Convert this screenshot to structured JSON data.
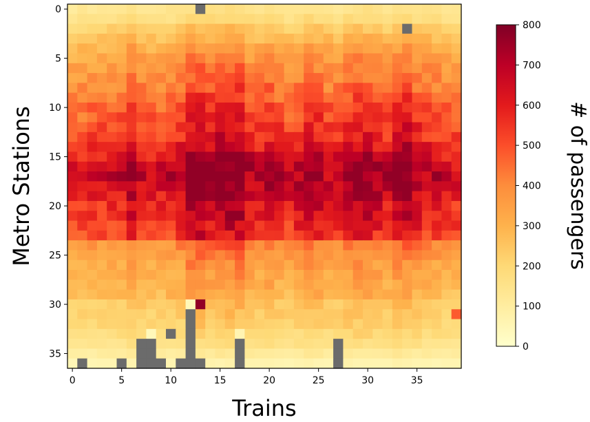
{
  "chart_data": {
    "type": "heatmap",
    "xlabel": "Trains",
    "ylabel": "Metro Stations",
    "colorbar_label": "# of passengers",
    "n_cols": 40,
    "n_rows": 37,
    "xlim": [
      0,
      39
    ],
    "ylim": [
      0,
      36
    ],
    "xticks": [
      0,
      5,
      10,
      15,
      20,
      25,
      30,
      35
    ],
    "yticks": [
      0,
      5,
      10,
      15,
      20,
      25,
      30,
      35
    ],
    "colorbar_range": [
      0,
      800
    ],
    "colorbar_ticks": [
      0,
      100,
      200,
      300,
      400,
      500,
      600,
      700,
      800
    ],
    "colormap": "YlOrRd",
    "missing_color": "#6b6b6b",
    "missing_cells": [
      [
        13,
        0
      ],
      [
        34,
        2
      ],
      [
        12,
        31
      ],
      [
        12,
        32
      ],
      [
        12,
        33
      ],
      [
        12,
        34
      ],
      [
        12,
        35
      ],
      [
        12,
        36
      ],
      [
        10,
        33
      ],
      [
        7,
        34
      ],
      [
        8,
        34
      ],
      [
        7,
        35
      ],
      [
        8,
        35
      ],
      [
        7,
        36
      ],
      [
        8,
        36
      ],
      [
        9,
        36
      ],
      [
        11,
        36
      ],
      [
        13,
        36
      ],
      [
        17,
        34
      ],
      [
        17,
        35
      ],
      [
        17,
        36
      ],
      [
        27,
        34
      ],
      [
        27,
        35
      ],
      [
        27,
        36
      ],
      [
        1,
        36
      ],
      [
        5,
        36
      ]
    ],
    "column_intensity": [
      0.7,
      0.75,
      0.8,
      0.8,
      0.85,
      0.9,
      1.15,
      0.95,
      0.85,
      0.85,
      0.95,
      1.0,
      1.4,
      1.45,
      1.25,
      1.35,
      1.4,
      1.45,
      1.05,
      1.0,
      1.15,
      1.0,
      0.9,
      1.0,
      1.25,
      1.15,
      0.95,
      0.95,
      1.15,
      1.25,
      1.25,
      1.1,
      1.0,
      1.3,
      1.35,
      1.1,
      1.0,
      0.95,
      0.85,
      0.8
    ],
    "row_intensity": [
      0.18,
      0.22,
      0.3,
      0.36,
      0.42,
      0.46,
      0.5,
      0.53,
      0.56,
      0.6,
      0.64,
      0.66,
      0.7,
      0.73,
      0.78,
      0.84,
      0.9,
      0.92,
      0.88,
      0.84,
      0.8,
      0.78,
      0.74,
      0.7,
      0.52,
      0.48,
      0.44,
      0.42,
      0.4,
      0.38,
      0.32,
      0.3,
      0.28,
      0.24,
      0.2,
      0.14,
      0.08
    ],
    "peak_value": 770,
    "notable_cells": [
      [
        13,
        30,
        770
      ],
      [
        12,
        30,
        40
      ],
      [
        39,
        31,
        480
      ],
      [
        8,
        33,
        40
      ],
      [
        17,
        33,
        60
      ]
    ]
  }
}
